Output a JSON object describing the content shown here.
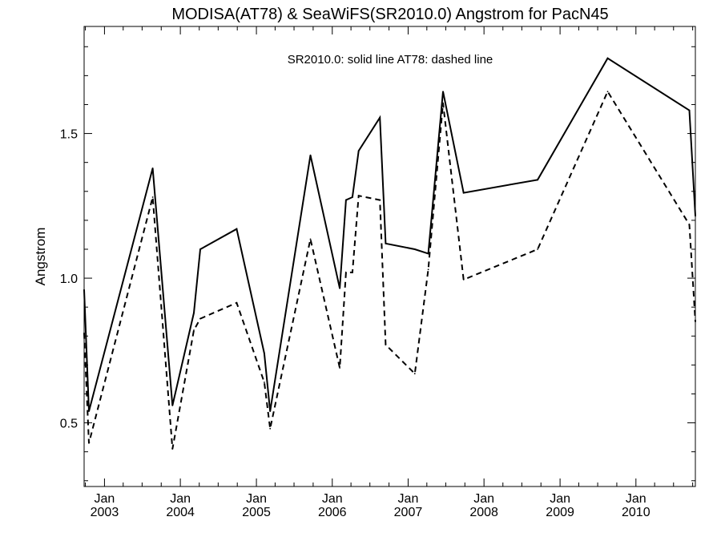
{
  "chart_data": {
    "type": "line",
    "title": "MODISA(AT78) & SeaWiFS(SR2010.0)  Angstrom for PacN45",
    "annotation": "SR2010.0: solid line   AT78: dashed line",
    "xlabel": "",
    "ylabel": "Angstrom",
    "xlim": [
      "2002-09-25",
      "2010-10-14"
    ],
    "ylim": [
      0.28,
      1.87
    ],
    "yticks": [
      {
        "value": 0.5,
        "label": "0.5"
      },
      {
        "value": 1.0,
        "label": "1.0"
      },
      {
        "value": 1.5,
        "label": "1.5"
      }
    ],
    "xticks": [
      {
        "date": "2003-01-01",
        "line1": "Jan",
        "line2": "2003"
      },
      {
        "date": "2004-01-01",
        "line1": "Jan",
        "line2": "2004"
      },
      {
        "date": "2005-01-01",
        "line1": "Jan",
        "line2": "2005"
      },
      {
        "date": "2006-01-01",
        "line1": "Jan",
        "line2": "2006"
      },
      {
        "date": "2007-01-01",
        "line1": "Jan",
        "line2": "2007"
      },
      {
        "date": "2008-01-01",
        "line1": "Jan",
        "line2": "2008"
      },
      {
        "date": "2009-01-01",
        "line1": "Jan",
        "line2": "2009"
      },
      {
        "date": "2010-01-01",
        "line1": "Jan",
        "line2": "2010"
      }
    ],
    "grid": false,
    "series": [
      {
        "name": "SR2010.0",
        "style": "solid",
        "color": "#000000",
        "points": [
          [
            "2002-09-25",
            0.96
          ],
          [
            "2002-10-18",
            0.54
          ],
          [
            "2003-08-21",
            1.38
          ],
          [
            "2003-11-24",
            0.56
          ],
          [
            "2004-03-06",
            0.88
          ],
          [
            "2004-04-06",
            1.1
          ],
          [
            "2004-09-28",
            1.17
          ],
          [
            "2005-02-08",
            0.74
          ],
          [
            "2005-03-08",
            0.54
          ],
          [
            "2005-09-18",
            1.425
          ],
          [
            "2006-02-06",
            0.965
          ],
          [
            "2006-03-08",
            1.27
          ],
          [
            "2006-04-08",
            1.28
          ],
          [
            "2006-05-08",
            1.44
          ],
          [
            "2006-08-18",
            1.555
          ],
          [
            "2006-09-15",
            1.12
          ],
          [
            "2007-02-02",
            1.1
          ],
          [
            "2007-04-08",
            1.085
          ],
          [
            "2007-06-18",
            1.645
          ],
          [
            "2007-09-25",
            1.295
          ],
          [
            "2008-09-15",
            1.34
          ],
          [
            "2009-08-18",
            1.76
          ],
          [
            "2010-09-15",
            1.58
          ],
          [
            "2010-10-14",
            1.215
          ]
        ]
      },
      {
        "name": "AT78",
        "style": "dashed",
        "color": "#000000",
        "points": [
          [
            "2002-09-25",
            0.81
          ],
          [
            "2002-10-18",
            0.43
          ],
          [
            "2003-08-21",
            1.28
          ],
          [
            "2003-11-24",
            0.41
          ],
          [
            "2004-03-06",
            0.82
          ],
          [
            "2004-04-06",
            0.86
          ],
          [
            "2004-09-28",
            0.915
          ],
          [
            "2005-02-08",
            0.64
          ],
          [
            "2005-03-08",
            0.48
          ],
          [
            "2005-09-18",
            1.135
          ],
          [
            "2006-02-06",
            0.69
          ],
          [
            "2006-03-08",
            1.02
          ],
          [
            "2006-04-08",
            1.02
          ],
          [
            "2006-05-08",
            1.285
          ],
          [
            "2006-08-18",
            1.27
          ],
          [
            "2006-09-15",
            0.77
          ],
          [
            "2007-02-02",
            0.67
          ],
          [
            "2007-04-08",
            1.03
          ],
          [
            "2007-06-18",
            1.605
          ],
          [
            "2007-09-25",
            0.995
          ],
          [
            "2008-09-15",
            1.1
          ],
          [
            "2009-08-18",
            1.645
          ],
          [
            "2010-09-15",
            1.185
          ],
          [
            "2010-10-14",
            0.85
          ]
        ]
      }
    ]
  }
}
